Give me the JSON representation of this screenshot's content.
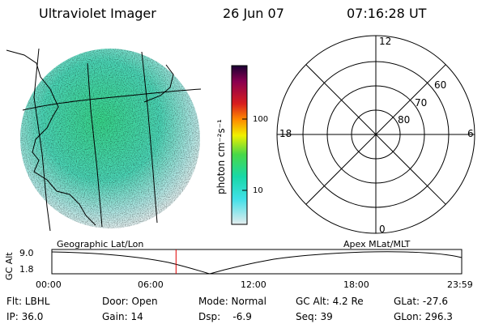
{
  "header": {
    "title": "Ultraviolet Imager",
    "date": "26 Jun 07",
    "time": "07:16:28 UT"
  },
  "colorbar": {
    "label": "photon cm⁻²s⁻¹",
    "ticks": [
      "100",
      "10"
    ]
  },
  "polar": {
    "lat_labels": [
      "60",
      "70",
      "80"
    ],
    "mlt_labels": [
      "12",
      "18",
      "6",
      "0"
    ]
  },
  "timeline": {
    "left_title": "Geographic Lat/Lon",
    "right_title": "Apex MLat/MLT",
    "y_axis_label": "GC Alt",
    "y_ticks": [
      "9.0",
      "1.8"
    ],
    "x_ticks": [
      "00:00",
      "06:00",
      "12:00",
      "18:00",
      "23:59"
    ],
    "current_time_fraction": 0.303
  },
  "info": {
    "filter": "Flt: LBHL",
    "ip": "IP: 36.0",
    "door": "Door: Open",
    "gain": "Gain: 14",
    "mode": "Mode: Normal",
    "dsp": "Dsp:    -6.9",
    "gc_alt": "GC Alt: 4.2 Re",
    "seq": "Seq: 39",
    "glat": "GLat: -27.6",
    "glon": "GLon: 296.3"
  },
  "colors": {
    "accent_line": "#e00000"
  }
}
